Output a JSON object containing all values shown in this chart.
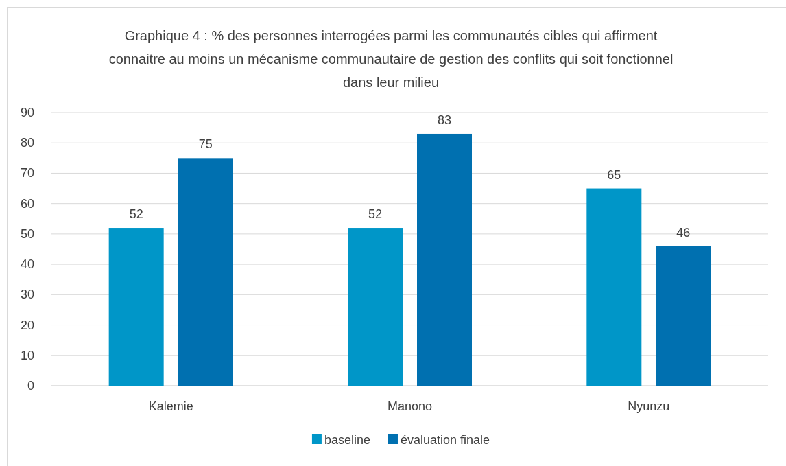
{
  "chart_data": {
    "type": "bar",
    "title": "Graphique 4 : % des personnes interrogées parmi les communautés cibles qui affirment connaitre au moins un mécanisme communautaire de gestion des conflits qui soit fonctionnel  dans leur milieu",
    "categories": [
      "Kalemie",
      "Manono",
      "Nyunzu"
    ],
    "series": [
      {
        "name": "baseline",
        "color": "#0096c8",
        "values": [
          52,
          52,
          65
        ]
      },
      {
        "name": "évaluation finale",
        "color": "#0070b0",
        "values": [
          75,
          83,
          46
        ]
      }
    ],
    "ylim": [
      0,
      90
    ],
    "yticks": [
      0,
      10,
      20,
      30,
      40,
      50,
      60,
      70,
      80,
      90
    ],
    "grid": "y",
    "legend": "bottom",
    "data_labels": true
  }
}
